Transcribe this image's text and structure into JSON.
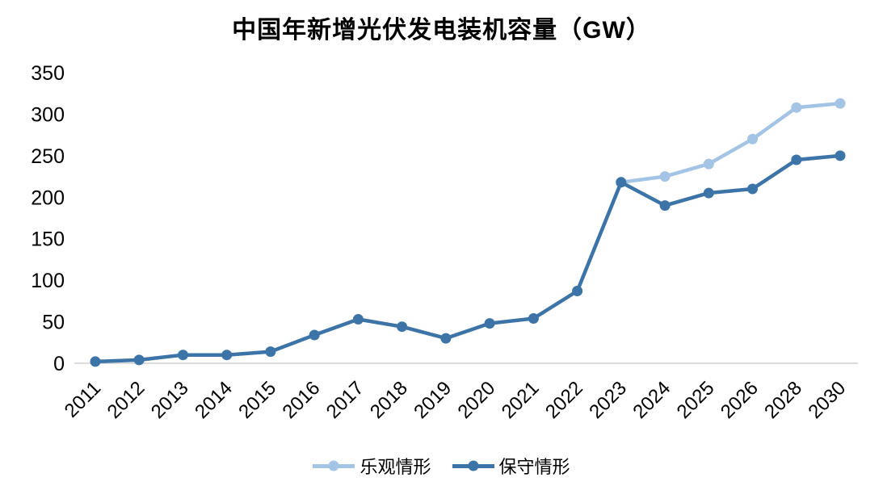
{
  "title": "中国年新增光伏发电装机容量（GW）",
  "chart_data": {
    "type": "line",
    "title": "中国年新增光伏发电装机容量（GW）",
    "categories": [
      "2011",
      "2012",
      "2013",
      "2014",
      "2015",
      "2016",
      "2017",
      "2018",
      "2019",
      "2020",
      "2021",
      "2022",
      "2023",
      "2024",
      "2025",
      "2026",
      "2028",
      "2030"
    ],
    "series": [
      {
        "name": "乐观情形",
        "color": "#A3C4E4",
        "values": [
          null,
          null,
          null,
          null,
          null,
          null,
          null,
          null,
          null,
          null,
          null,
          null,
          218,
          225,
          240,
          270,
          308,
          313
        ]
      },
      {
        "name": "保守情形",
        "color": "#3C74A8",
        "values": [
          2,
          4,
          10,
          10,
          14,
          34,
          53,
          44,
          30,
          48,
          54,
          87,
          218,
          190,
          205,
          210,
          245,
          250
        ]
      }
    ],
    "xlabel": "",
    "ylabel": "",
    "ylim": [
      0,
      350
    ],
    "yticks": [
      0,
      50,
      100,
      150,
      200,
      250,
      300,
      350
    ],
    "grid": false,
    "legend_position": "bottom",
    "axis_line_color": "#D0D0D0"
  }
}
